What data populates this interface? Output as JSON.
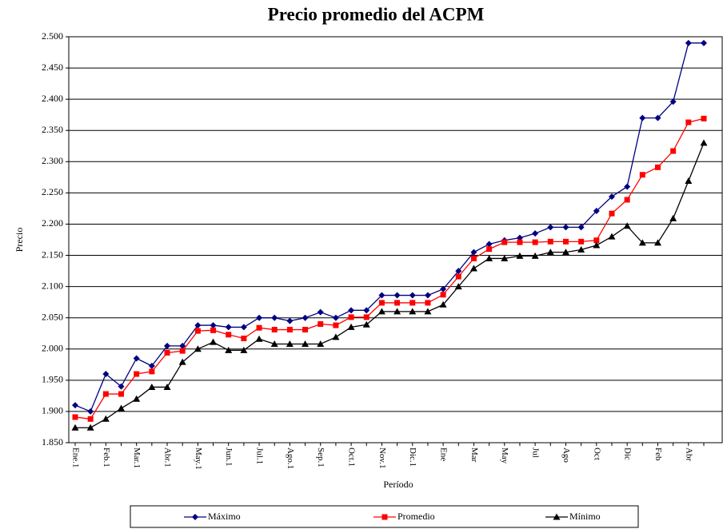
{
  "chart_data": {
    "type": "line",
    "title": "Precio promedio del ACPM",
    "x_label": "Período",
    "y_label": "Precio",
    "categories": [
      "Ene.1",
      null,
      "Feb.1",
      null,
      "Mar.1",
      null,
      "Abr.1",
      null,
      "May.1",
      null,
      "Jun.1",
      null,
      "Jul.1",
      null,
      "Ago.1",
      null,
      "Sep.1",
      null,
      "Oct.1",
      null,
      "Nov.1",
      null,
      "Dic.1",
      null,
      "Ene",
      null,
      "Mar",
      null,
      "May",
      null,
      "Jul",
      null,
      "Ago",
      null,
      "Oct",
      null,
      "Dic",
      null,
      "Feb",
      null,
      "Abr",
      null
    ],
    "series": [
      {
        "name": "Máximo",
        "color": "#000080",
        "marker": "diamond",
        "values": [
          1910,
          1900,
          1960,
          1940,
          1985,
          1973,
          2005,
          2005,
          2038,
          2038,
          2035,
          2035,
          2050,
          2050,
          2045,
          2050,
          2059,
          2050,
          2062,
          2062,
          2086,
          2086,
          2086,
          2086,
          2096,
          2125,
          2155,
          2168,
          2174,
          2178,
          2185,
          2195,
          2195,
          2195,
          2221,
          2244,
          2260,
          2370,
          2370,
          2396,
          2490,
          2490
        ]
      },
      {
        "name": "Promedio",
        "color": "#ff0000",
        "marker": "square",
        "values": [
          1891,
          1888,
          1928,
          1928,
          1960,
          1964,
          1994,
          1997,
          2029,
          2030,
          2023,
          2017,
          2034,
          2031,
          2031,
          2031,
          2040,
          2038,
          2051,
          2051,
          2074,
          2074,
          2074,
          2074,
          2087,
          2116,
          2145,
          2160,
          2171,
          2171,
          2171,
          2172,
          2172,
          2172,
          2174,
          2217,
          2239,
          2279,
          2291,
          2317,
          2363,
          2369
        ]
      },
      {
        "name": "Mínimo",
        "color": "#000000",
        "marker": "triangle",
        "values": [
          1874,
          1874,
          1888,
          1905,
          1920,
          1939,
          1939,
          1979,
          2000,
          2011,
          1998,
          1998,
          2016,
          2008,
          2008,
          2008,
          2008,
          2019,
          2035,
          2039,
          2060,
          2060,
          2060,
          2060,
          2071,
          2100,
          2129,
          2145,
          2145,
          2149,
          2149,
          2155,
          2155,
          2159,
          2166,
          2180,
          2197,
          2170,
          2170,
          2209,
          2269,
          2330
        ]
      }
    ],
    "ylim": [
      1850,
      2500
    ],
    "yticks": [
      {
        "value": 1850,
        "label": "1.850"
      },
      {
        "value": 1900,
        "label": "1.900"
      },
      {
        "value": 1950,
        "label": "1.950"
      },
      {
        "value": 2000,
        "label": "2.000"
      },
      {
        "value": 2050,
        "label": "2.050"
      },
      {
        "value": 2100,
        "label": "2.100"
      },
      {
        "value": 2150,
        "label": "2.150"
      },
      {
        "value": 2200,
        "label": "2.200"
      },
      {
        "value": 2250,
        "label": "2.250"
      },
      {
        "value": 2300,
        "label": "2.300"
      },
      {
        "value": 2350,
        "label": "2.350"
      },
      {
        "value": 2400,
        "label": "2.400"
      },
      {
        "value": 2450,
        "label": "2.450"
      },
      {
        "value": 2500,
        "label": "2.500"
      }
    ],
    "grid": true,
    "legend": "bottom"
  }
}
